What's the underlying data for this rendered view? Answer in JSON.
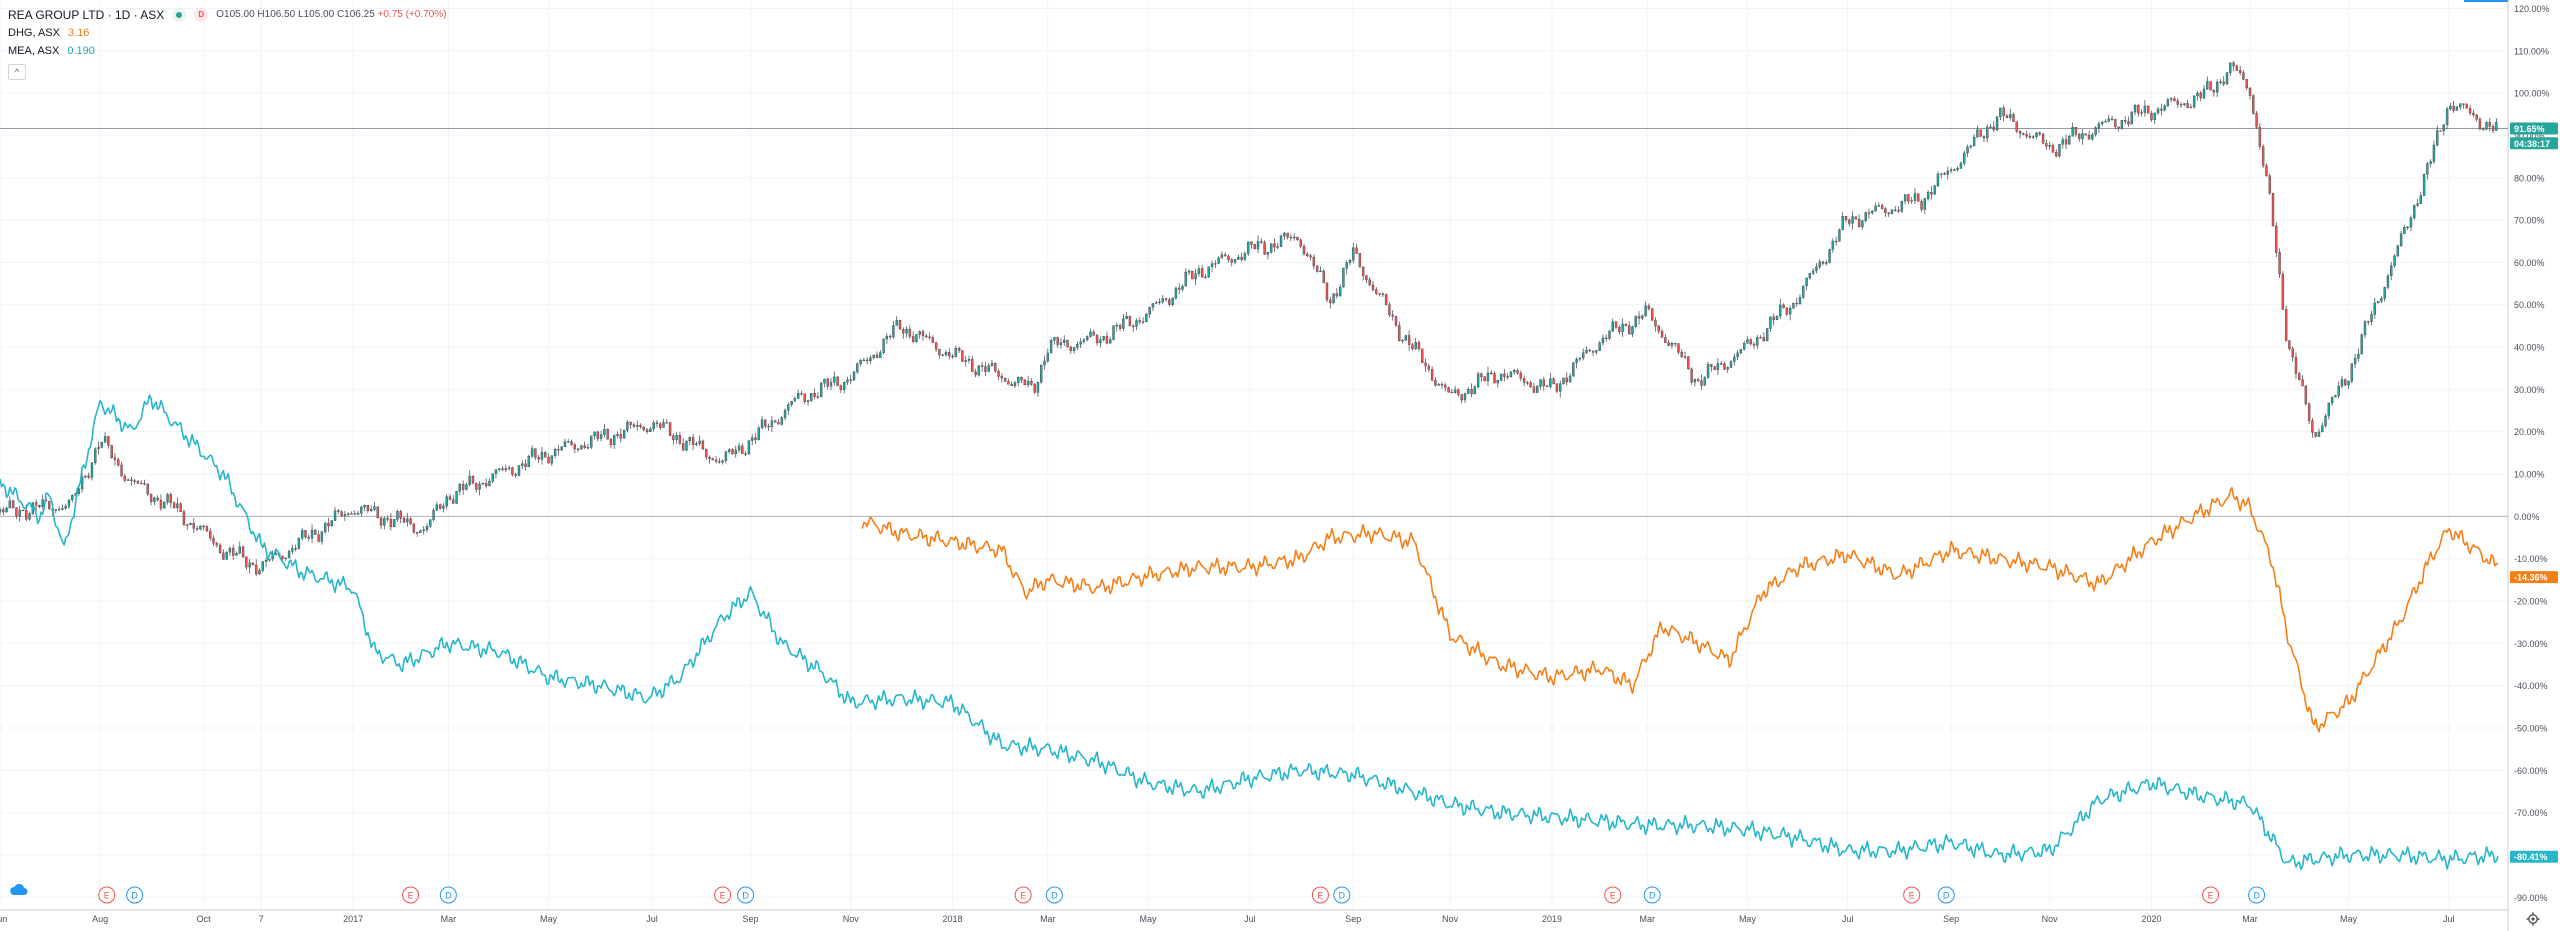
{
  "header": {
    "title": "REA GROUP LTD · 1D · ASX",
    "badge_d": "D",
    "open": "O105.00",
    "high": "H106.50",
    "low": "L105.00",
    "close": "C106.25",
    "change": "+0.75 (+0.70%)"
  },
  "compare": [
    {
      "symbol": "DHG, ASX",
      "value": "3.16"
    },
    {
      "symbol": "MEA, ASX",
      "value": "0.190"
    }
  ],
  "collapse_glyph": "^",
  "colors": {
    "main_up": "#26a69a",
    "main_down": "#ef5350",
    "dhg": "#f57f17",
    "mea": "#26b6c9",
    "grid": "#f0f3fa",
    "axis_text": "#4a4f5c"
  },
  "chart_data": {
    "type": "line",
    "y_axis": {
      "unit": "%",
      "range": [
        -93,
        122
      ],
      "ticks": [
        "120.00%",
        "110.00%",
        "100.00%",
        "90.00%",
        "80.00%",
        "70.00%",
        "60.00%",
        "50.00%",
        "40.00%",
        "30.00%",
        "20.00%",
        "10.00%",
        "0.00%",
        "-10.00%",
        "-20.00%",
        "-30.00%",
        "-40.00%",
        "-50.00%",
        "-60.00%",
        "-70.00%",
        "-80.00%",
        "-90.00%"
      ],
      "tick_values": [
        120,
        110,
        100,
        90,
        80,
        70,
        60,
        50,
        40,
        30,
        20,
        10,
        0,
        -10,
        -20,
        -30,
        -40,
        -50,
        -60,
        -70,
        -80,
        -90
      ]
    },
    "x_axis": {
      "range": [
        "2016-06-01",
        "2020-07-31"
      ],
      "ticks": [
        {
          "label": "Jun",
          "date": "2016-06-01"
        },
        {
          "label": "Aug",
          "date": "2016-08-01"
        },
        {
          "label": "Oct",
          "date": "2016-10-03"
        },
        {
          "label": "7",
          "date": "2016-11-07"
        },
        {
          "label": "2017",
          "date": "2017-01-02"
        },
        {
          "label": "Mar",
          "date": "2017-03-01"
        },
        {
          "label": "May",
          "date": "2017-05-01"
        },
        {
          "label": "Jul",
          "date": "2017-07-03"
        },
        {
          "label": "Sep",
          "date": "2017-09-01"
        },
        {
          "label": "Nov",
          "date": "2017-11-01"
        },
        {
          "label": "2018",
          "date": "2018-01-02"
        },
        {
          "label": "Mar",
          "date": "2018-03-01"
        },
        {
          "label": "May",
          "date": "2018-05-01"
        },
        {
          "label": "Jul",
          "date": "2018-07-02"
        },
        {
          "label": "Sep",
          "date": "2018-09-03"
        },
        {
          "label": "Nov",
          "date": "2018-11-01"
        },
        {
          "label": "2019",
          "date": "2019-01-02"
        },
        {
          "label": "Mar",
          "date": "2019-03-01"
        },
        {
          "label": "May",
          "date": "2019-05-01"
        },
        {
          "label": "Jul",
          "date": "2019-07-01"
        },
        {
          "label": "Sep",
          "date": "2019-09-02"
        },
        {
          "label": "Nov",
          "date": "2019-11-01"
        },
        {
          "label": "2020",
          "date": "2020-01-02"
        },
        {
          "label": "Mar",
          "date": "2020-03-02"
        },
        {
          "label": "May",
          "date": "2020-05-01"
        },
        {
          "label": "Jul",
          "date": "2020-07-01"
        }
      ]
    },
    "hline_value": 91.65,
    "series": [
      {
        "name": "REA GROUP LTD",
        "style": "candles",
        "x": [
          "2016-06-01",
          "2016-07-15",
          "2016-08-01",
          "2016-08-20",
          "2016-09-15",
          "2016-10-15",
          "2016-11-07",
          "2016-12-01",
          "2017-01-02",
          "2017-02-15",
          "2017-03-01",
          "2017-05-01",
          "2017-07-03",
          "2017-08-15",
          "2017-09-01",
          "2017-10-01",
          "2017-11-01",
          "2017-12-01",
          "2018-01-02",
          "2018-02-20",
          "2018-03-01",
          "2018-04-01",
          "2018-05-01",
          "2018-06-01",
          "2018-07-02",
          "2018-08-01",
          "2018-08-20",
          "2018-09-03",
          "2018-10-01",
          "2018-11-01",
          "2018-12-01",
          "2019-01-02",
          "2019-02-01",
          "2019-03-01",
          "2019-04-01",
          "2019-05-01",
          "2019-06-01",
          "2019-07-01",
          "2019-08-15",
          "2019-09-02",
          "2019-10-01",
          "2019-11-01",
          "2019-12-01",
          "2020-01-02",
          "2020-02-01",
          "2020-02-20",
          "2020-03-02",
          "2020-03-15",
          "2020-03-25",
          "2020-04-10",
          "2020-05-01",
          "2020-06-01",
          "2020-06-20",
          "2020-07-01",
          "2020-07-31"
        ],
        "y": [
          1,
          3,
          18,
          8,
          2,
          -8,
          -12,
          -6,
          2,
          -3,
          5,
          15,
          22,
          13,
          18,
          28,
          33,
          45,
          38,
          30,
          40,
          42,
          48,
          58,
          63,
          66,
          51,
          62,
          44,
          28,
          34,
          30,
          42,
          48,
          32,
          40,
          52,
          70,
          75,
          82,
          95,
          87,
          92,
          96,
          99,
          106,
          101,
          72,
          41,
          19,
          34,
          64,
          84,
          98,
          91
        ]
      },
      {
        "name": "DHG, ASX",
        "style": "line",
        "x": [
          "2017-11-08",
          "2017-12-01",
          "2018-01-02",
          "2018-02-01",
          "2018-02-15",
          "2018-03-01",
          "2018-04-01",
          "2018-05-01",
          "2018-06-01",
          "2018-07-02",
          "2018-08-01",
          "2018-08-20",
          "2018-09-15",
          "2018-10-10",
          "2018-11-01",
          "2018-12-01",
          "2019-01-02",
          "2019-02-01",
          "2019-02-20",
          "2019-03-10",
          "2019-04-01",
          "2019-04-20",
          "2019-05-10",
          "2019-06-01",
          "2019-07-01",
          "2019-08-01",
          "2019-09-02",
          "2019-10-01",
          "2019-11-01",
          "2019-12-01",
          "2020-01-02",
          "2020-02-01",
          "2020-02-20",
          "2020-03-02",
          "2020-03-15",
          "2020-03-25",
          "2020-04-10",
          "2020-05-01",
          "2020-06-01",
          "2020-06-20",
          "2020-07-01",
          "2020-07-31"
        ],
        "y": [
          -1,
          -4,
          -6,
          -8,
          -18,
          -15,
          -17,
          -14,
          -12,
          -12,
          -10,
          -5,
          -4,
          -6,
          -28,
          -35,
          -38,
          -36,
          -40,
          -26,
          -30,
          -34,
          -18,
          -12,
          -9,
          -14,
          -8,
          -10,
          -12,
          -16,
          -6,
          1,
          5,
          2,
          -10,
          -28,
          -50,
          -44,
          -25,
          -10,
          -3,
          -12
        ]
      },
      {
        "name": "MEA, ASX",
        "style": "line",
        "x": [
          "2016-06-01",
          "2016-06-25",
          "2016-07-01",
          "2016-07-10",
          "2016-07-18",
          "2016-08-01",
          "2016-08-20",
          "2016-09-01",
          "2016-09-15",
          "2016-10-15",
          "2016-11-07",
          "2016-12-01",
          "2017-01-02",
          "2017-01-15",
          "2017-02-01",
          "2017-03-01",
          "2017-04-01",
          "2017-05-01",
          "2017-06-01",
          "2017-07-01",
          "2017-07-20",
          "2017-08-15",
          "2017-09-01",
          "2017-09-20",
          "2017-10-15",
          "2017-11-01",
          "2017-12-01",
          "2018-01-02",
          "2018-02-01",
          "2018-03-01",
          "2018-04-01",
          "2018-05-01",
          "2018-06-01",
          "2018-07-02",
          "2018-08-01",
          "2018-09-03",
          "2018-10-01",
          "2018-11-01",
          "2018-12-01",
          "2019-01-02",
          "2019-02-01",
          "2019-03-01",
          "2019-04-01",
          "2019-05-01",
          "2019-06-01",
          "2019-07-01",
          "2019-08-01",
          "2019-09-02",
          "2019-10-01",
          "2019-11-01",
          "2019-12-01",
          "2020-01-02",
          "2020-02-01",
          "2020-03-02",
          "2020-03-25",
          "2020-04-10",
          "2020-05-01",
          "2020-06-01",
          "2020-07-01",
          "2020-07-31"
        ],
        "y": [
          8,
          0,
          5,
          -8,
          5,
          27,
          20,
          28,
          22,
          10,
          -7,
          -13,
          -17,
          -32,
          -35,
          -30,
          -32,
          -38,
          -40,
          -43,
          -38,
          -24,
          -18,
          -30,
          -37,
          -44,
          -43,
          -44,
          -54,
          -55,
          -58,
          -63,
          -65,
          -62,
          -60,
          -61,
          -64,
          -68,
          -70,
          -71,
          -72,
          -73,
          -73,
          -74,
          -76,
          -79,
          -79,
          -77,
          -80,
          -79,
          -67,
          -63,
          -66,
          -68,
          -82,
          -81,
          -80,
          -80,
          -81,
          -80
        ]
      }
    ],
    "price_label": "91.65%",
    "timer_label": "04:38:17",
    "end_labels": [
      {
        "series": "DHG, ASX",
        "text": "-14.36%",
        "value": -14.36
      },
      {
        "series": "MEA, ASX",
        "text": "-80.41%",
        "value": -80.41
      }
    ],
    "events": [
      {
        "type": "E",
        "date": "2016-08-05"
      },
      {
        "type": "D",
        "date": "2016-08-22"
      },
      {
        "type": "E",
        "date": "2017-02-06"
      },
      {
        "type": "D",
        "date": "2017-03-01"
      },
      {
        "type": "E",
        "date": "2017-08-15"
      },
      {
        "type": "D",
        "date": "2017-08-29"
      },
      {
        "type": "E",
        "date": "2018-02-14"
      },
      {
        "type": "D",
        "date": "2018-03-05"
      },
      {
        "type": "E",
        "date": "2018-08-14"
      },
      {
        "type": "D",
        "date": "2018-08-27"
      },
      {
        "type": "E",
        "date": "2019-02-08"
      },
      {
        "type": "D",
        "date": "2019-03-04"
      },
      {
        "type": "E",
        "date": "2019-08-09"
      },
      {
        "type": "D",
        "date": "2019-08-30"
      },
      {
        "type": "E",
        "date": "2020-02-07"
      },
      {
        "type": "D",
        "date": "2020-03-06"
      }
    ]
  }
}
